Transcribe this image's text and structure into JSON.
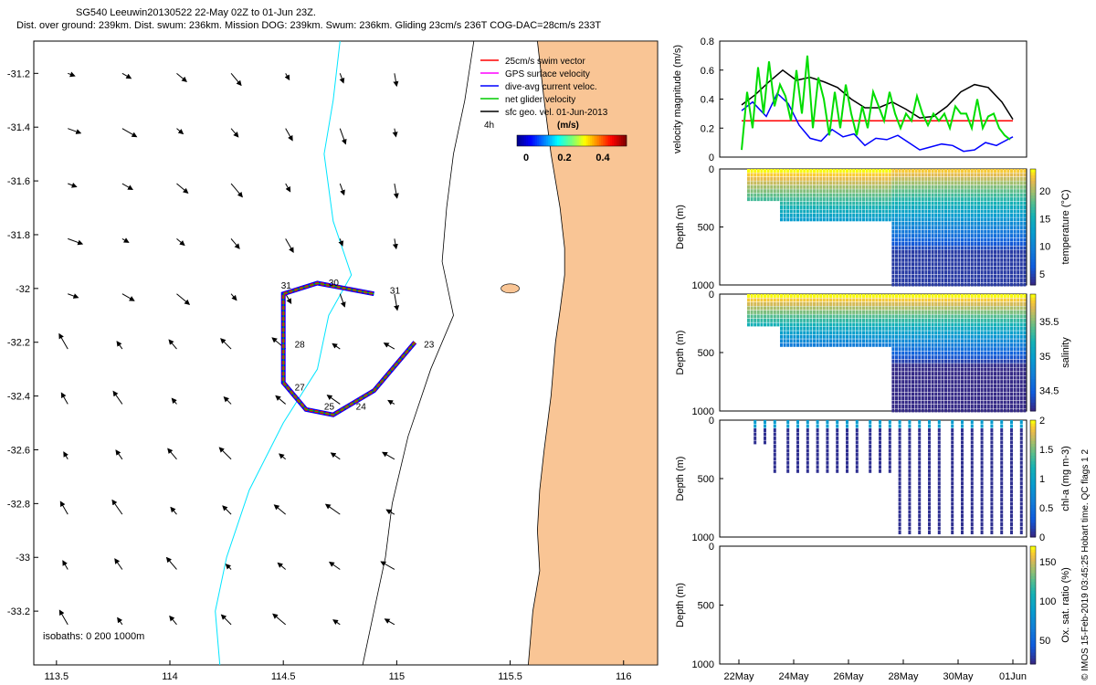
{
  "header": {
    "line1": "SG540 Leeuwin20130522 22-May 02Z to 01-Jun 23Z.",
    "line2": "Dist. over ground: 239km. Dist. swum: 236km. Mission DOG: 239km. Swum: 236km. Gliding 23cm/s 236T COG-DAC=28cm/s 233T"
  },
  "map": {
    "lon_ticks": [
      "113.5",
      "114",
      "114.5",
      "115",
      "115.5",
      "116"
    ],
    "lat_ticks": [
      "-31.2",
      "-31.4",
      "-31.6",
      "-31.8",
      "-32",
      "-32.2",
      "-32.4",
      "-32.6",
      "-32.8",
      "-33",
      "-33.2"
    ],
    "legend": [
      {
        "label": "25cm/s swim vector",
        "color": "#ff0000"
      },
      {
        "label": "GPS surface velocity",
        "color": "#ff00ff"
      },
      {
        "label": "dive-avg current veloc.",
        "color": "#0000ff"
      },
      {
        "label": "net glider velocity",
        "color": "#00cc00"
      },
      {
        "label": "sfc geo. vel. 01-Jun-2013",
        "color": "#000000"
      }
    ],
    "colorbar_title": "(m/s)",
    "colorbar_ticks": [
      "0",
      "0.2",
      "0.4"
    ],
    "colorbar_note": "4h",
    "isobaths_label": "isobaths: 0   200  1000m",
    "day_labels": [
      {
        "text": "23",
        "lon": 115.12,
        "lat": -32.22
      },
      {
        "text": "24",
        "lon": 114.82,
        "lat": -32.45
      },
      {
        "text": "25",
        "lon": 114.68,
        "lat": -32.45
      },
      {
        "text": "27",
        "lon": 114.55,
        "lat": -32.38
      },
      {
        "text": "28",
        "lon": 114.55,
        "lat": -32.22
      },
      {
        "text": "30",
        "lon": 114.7,
        "lat": -31.99
      },
      {
        "text": "31",
        "lon": 114.97,
        "lat": -32.02
      },
      {
        "text": "31",
        "lon": 114.49,
        "lat": -32.0
      }
    ],
    "colors": {
      "land": "#f9c595",
      "coast200": "#000000",
      "iso1000": "#00e5ff"
    }
  },
  "chart_data": [
    {
      "type": "line",
      "title": "velocity magnitude",
      "ylabel": "velocity magnitude (m/s)",
      "ylim": [
        0,
        0.8
      ],
      "yticks": [
        "0",
        "0.2",
        "0.4",
        "0.6",
        "0.8"
      ],
      "x_days": [
        22,
        32
      ],
      "series": [
        {
          "name": "swim vector",
          "color": "#ff0000",
          "x": [
            22.1,
            23.0,
            24.0,
            25.0,
            26.0,
            27.0,
            28.0,
            29.0,
            30.0,
            31.0,
            32.0
          ],
          "values": [
            0.25,
            0.25,
            0.25,
            0.25,
            0.25,
            0.25,
            0.25,
            0.25,
            0.25,
            0.25,
            0.25
          ]
        },
        {
          "name": "sfc geo. vel.",
          "color": "#000000",
          "x": [
            22.1,
            22.6,
            23.1,
            23.6,
            24.1,
            24.6,
            25.1,
            25.6,
            26.1,
            26.6,
            27.1,
            27.6,
            28.1,
            28.6,
            29.1,
            29.6,
            30.1,
            30.6,
            31.1,
            31.6,
            32.0
          ],
          "values": [
            0.36,
            0.43,
            0.52,
            0.6,
            0.53,
            0.55,
            0.52,
            0.48,
            0.4,
            0.34,
            0.34,
            0.38,
            0.33,
            0.27,
            0.28,
            0.35,
            0.45,
            0.5,
            0.48,
            0.38,
            0.26
          ]
        },
        {
          "name": "dive-avg current",
          "color": "#0000ff",
          "x": [
            22.1,
            22.5,
            23.0,
            23.4,
            23.8,
            24.2,
            24.6,
            25.0,
            25.4,
            25.8,
            26.2,
            26.6,
            27.0,
            27.4,
            27.8,
            28.2,
            28.6,
            29.0,
            29.4,
            29.8,
            30.2,
            30.6,
            31.0,
            31.4,
            31.8,
            32.0
          ],
          "values": [
            0.32,
            0.38,
            0.28,
            0.44,
            0.37,
            0.22,
            0.13,
            0.11,
            0.19,
            0.14,
            0.16,
            0.08,
            0.13,
            0.12,
            0.15,
            0.1,
            0.05,
            0.07,
            0.09,
            0.08,
            0.04,
            0.05,
            0.1,
            0.08,
            0.12,
            0.14
          ]
        },
        {
          "name": "net glider velocity",
          "color": "#00dd00",
          "x": [
            22.1,
            22.3,
            22.5,
            22.7,
            22.9,
            23.1,
            23.3,
            23.5,
            23.7,
            23.9,
            24.1,
            24.3,
            24.5,
            24.7,
            24.9,
            25.1,
            25.3,
            25.5,
            25.7,
            25.9,
            26.1,
            26.3,
            26.5,
            26.7,
            26.9,
            27.1,
            27.3,
            27.5,
            27.7,
            27.9,
            28.1,
            28.3,
            28.5,
            28.7,
            28.9,
            29.1,
            29.3,
            29.5,
            29.7,
            29.9,
            30.1,
            30.3,
            30.5,
            30.7,
            30.9,
            31.1,
            31.3,
            31.5,
            31.7,
            31.9
          ],
          "values": [
            0.05,
            0.45,
            0.2,
            0.62,
            0.3,
            0.66,
            0.35,
            0.5,
            0.42,
            0.25,
            0.6,
            0.3,
            0.7,
            0.2,
            0.55,
            0.4,
            0.15,
            0.45,
            0.2,
            0.5,
            0.3,
            0.15,
            0.35,
            0.2,
            0.45,
            0.35,
            0.25,
            0.45,
            0.3,
            0.2,
            0.3,
            0.25,
            0.42,
            0.3,
            0.22,
            0.3,
            0.25,
            0.3,
            0.2,
            0.35,
            0.3,
            0.3,
            0.2,
            0.4,
            0.2,
            0.28,
            0.3,
            0.2,
            0.15,
            0.12
          ]
        }
      ]
    },
    {
      "type": "heatmap",
      "ylabel": "Depth (m)",
      "ylim": [
        1000,
        0
      ],
      "yticks": [
        "0",
        "500",
        "1000"
      ],
      "colorbar_label": "temperature (°C)",
      "colorbar_ticks": [
        "5",
        "10",
        "15",
        "20"
      ],
      "vmin": 3,
      "vmax": 24
    },
    {
      "type": "heatmap",
      "ylabel": "Depth (m)",
      "ylim": [
        1000,
        0
      ],
      "yticks": [
        "0",
        "500",
        "1000"
      ],
      "colorbar_label": "salinity",
      "colorbar_ticks": [
        "34.5",
        "35",
        "35.5"
      ],
      "vmin": 34.2,
      "vmax": 35.9
    },
    {
      "type": "heatmap",
      "ylabel": "Depth (m)",
      "ylim": [
        1000,
        0
      ],
      "yticks": [
        "0",
        "500",
        "1000"
      ],
      "colorbar_label": "chl-a (mg m-3)",
      "colorbar_ticks": [
        "0",
        "0.5",
        "1",
        "1.5",
        "2"
      ],
      "vmin": 0,
      "vmax": 2
    },
    {
      "type": "heatmap",
      "ylabel": "Depth (m)",
      "ylim": [
        1000,
        0
      ],
      "yticks": [
        "0",
        "500",
        "1000"
      ],
      "colorbar_label": "Ox. sat. ratio (%)",
      "colorbar_ticks": [
        "50",
        "100",
        "150"
      ],
      "vmin": 20,
      "vmax": 170
    },
    {
      "type": "axis",
      "xticks": [
        "22May",
        "24May",
        "26May",
        "28May",
        "30May",
        "01Jun"
      ],
      "x_day_values": [
        22,
        24,
        26,
        28,
        30,
        32
      ]
    }
  ],
  "credit": "© IMOS 15-Feb-2019 03:45:25 Hobart time. QC flags 1  2"
}
